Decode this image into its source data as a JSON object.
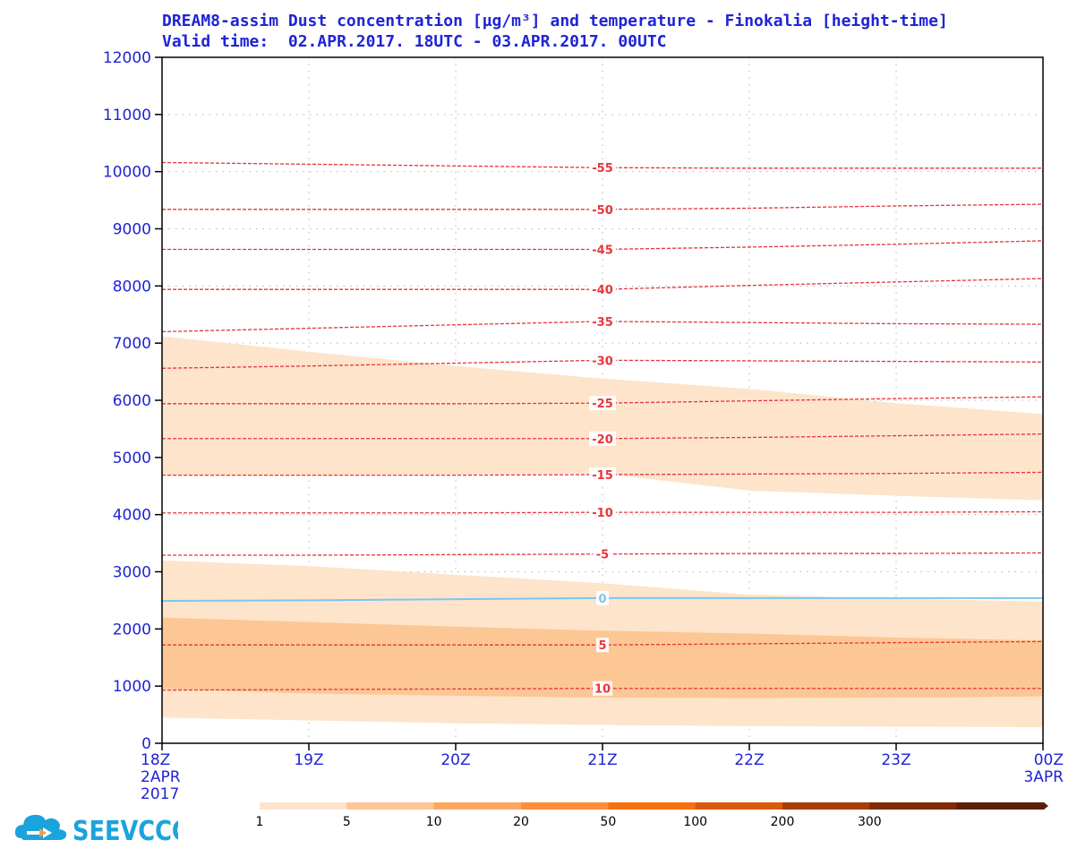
{
  "title_line1": "DREAM8-assim Dust concentration [µg/m³] and temperature - Finokalia [height-time]",
  "title_line2": "Valid time:  02.APR.2017. 18UTC - 03.APR.2017. 00UTC",
  "logo_text": "SEEVCCC",
  "colors": {
    "axis_text": "#1f24d6",
    "temperature_line": "#e8353a",
    "zero_isotherm": "#7cc7ec",
    "logo": "#1ba3dc",
    "dust_1_5": "#fde4cb",
    "dust_5_10": "#fcc795"
  },
  "chart_data": {
    "type": "area",
    "title": "DREAM8-assim Dust concentration [µg/m³] and temperature - Finokalia [height-time]",
    "subtitle": "Valid time:  02.APR.2017. 18UTC - 03.APR.2017. 00UTC",
    "xlabel": "",
    "ylabel": "",
    "x": [
      0,
      1,
      2,
      3,
      4,
      5,
      6
    ],
    "xticks": [
      "18Z",
      "19Z",
      "20Z",
      "21Z",
      "22Z",
      "23Z",
      "00Z"
    ],
    "xticks_extra": [
      {
        "index": 0,
        "lines": [
          "2APR",
          "2017"
        ]
      },
      {
        "index": 6,
        "lines": [
          "3APR"
        ]
      }
    ],
    "xlim": [
      0,
      6
    ],
    "ylim": [
      0,
      12000
    ],
    "yticks": [
      "0",
      "1000",
      "2000",
      "3000",
      "4000",
      "5000",
      "6000",
      "7000",
      "8000",
      "9000",
      "10000",
      "11000",
      "12000"
    ],
    "grid": true,
    "dust_bands": [
      {
        "level": "1-5",
        "color": "#fde4cb",
        "bottom": [
          450,
          400,
          350,
          320,
          300,
          290,
          280
        ],
        "top": [
          3200,
          3100,
          2950,
          2800,
          2600,
          2530,
          2480
        ]
      },
      {
        "level": "1-5",
        "color": "#fde4cb",
        "bottom": [
          4680,
          4680,
          4700,
          4720,
          4420,
          4330,
          4250
        ],
        "top": [
          7120,
          6850,
          6600,
          6380,
          6200,
          5950,
          5760
        ]
      },
      {
        "level": "5-10",
        "color": "#fcc795",
        "bottom": [
          950,
          870,
          830,
          800,
          790,
          800,
          820
        ],
        "top": [
          2200,
          2120,
          2040,
          1970,
          1920,
          1850,
          1800
        ]
      }
    ],
    "temperature_contours": [
      {
        "label": "-55",
        "values": [
          10160,
          10130,
          10100,
          10070,
          10060,
          10060,
          10060
        ]
      },
      {
        "label": "-50",
        "values": [
          9340,
          9340,
          9340,
          9340,
          9360,
          9400,
          9430
        ]
      },
      {
        "label": "-45",
        "values": [
          8640,
          8640,
          8640,
          8640,
          8680,
          8730,
          8790
        ]
      },
      {
        "label": "-40",
        "values": [
          7940,
          7940,
          7940,
          7940,
          8010,
          8070,
          8130
        ]
      },
      {
        "label": "-35",
        "values": [
          7200,
          7260,
          7320,
          7380,
          7360,
          7340,
          7330
        ]
      },
      {
        "label": "-30",
        "values": [
          6560,
          6600,
          6650,
          6700,
          6690,
          6680,
          6670
        ]
      },
      {
        "label": "-25",
        "values": [
          5940,
          5940,
          5940,
          5950,
          5990,
          6030,
          6060
        ]
      },
      {
        "label": "-20",
        "values": [
          5330,
          5330,
          5330,
          5330,
          5350,
          5380,
          5410
        ]
      },
      {
        "label": "-15",
        "values": [
          4690,
          4690,
          4690,
          4700,
          4710,
          4720,
          4740
        ]
      },
      {
        "label": "-10",
        "values": [
          4030,
          4030,
          4030,
          4040,
          4040,
          4040,
          4050
        ]
      },
      {
        "label": "-5",
        "values": [
          3290,
          3290,
          3300,
          3310,
          3320,
          3320,
          3330
        ]
      },
      {
        "label": "0",
        "values": [
          2490,
          2500,
          2520,
          2540,
          2540,
          2540,
          2540
        ],
        "color": "#7cc7ec"
      },
      {
        "label": "5",
        "values": [
          1720,
          1720,
          1720,
          1720,
          1740,
          1760,
          1780
        ]
      },
      {
        "label": "10",
        "values": [
          930,
          940,
          950,
          960,
          960,
          960,
          960
        ]
      }
    ],
    "colorbar": {
      "labels": [
        "1",
        "5",
        "10",
        "20",
        "50",
        "100",
        "200",
        "300"
      ],
      "colors": [
        "#fde4cb",
        "#fcc795",
        "#fca762",
        "#fd8d3c",
        "#f77010",
        "#d95a0c",
        "#a63e08",
        "#7f2b06",
        "#5a1f05"
      ]
    }
  }
}
